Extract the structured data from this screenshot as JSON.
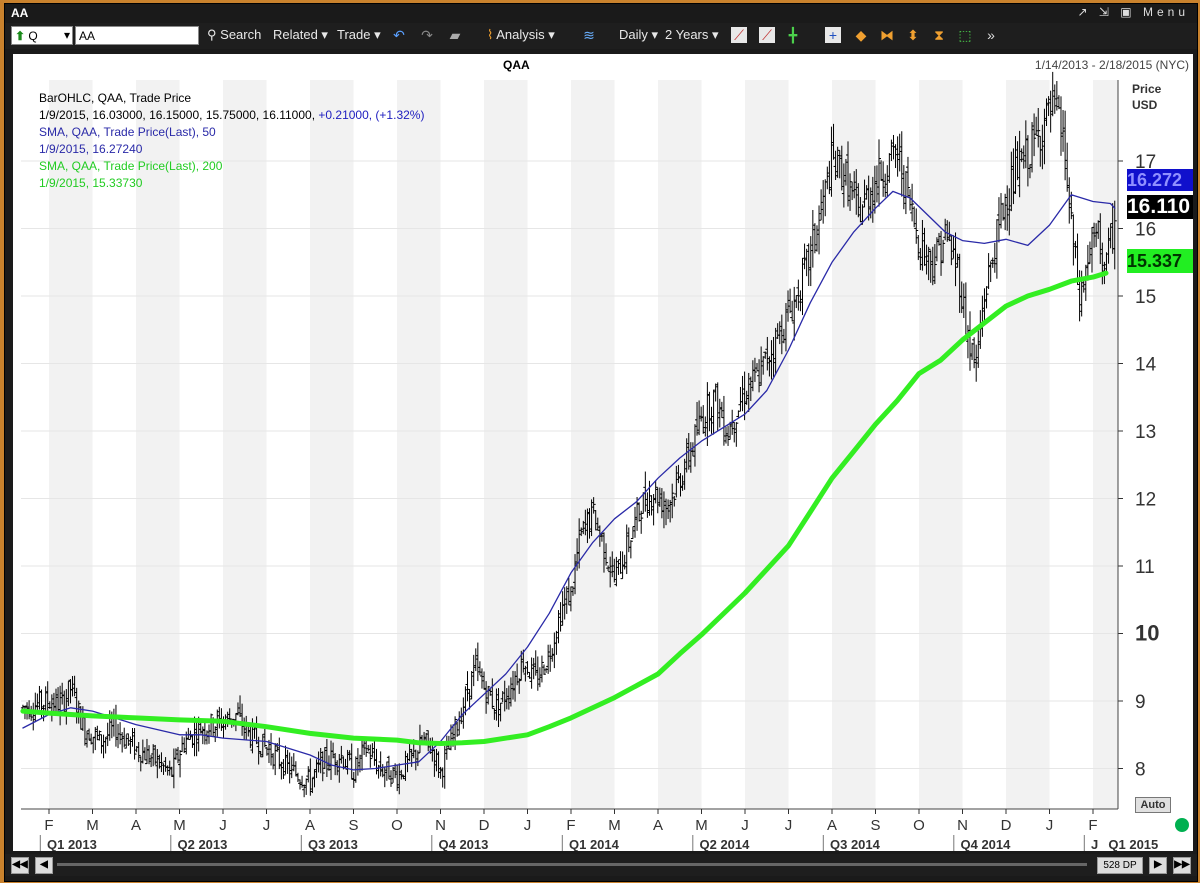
{
  "window": {
    "title": "AA",
    "controls": "↗ ⇲ ▣ Menu"
  },
  "toolbar": {
    "symbol_type": "Q",
    "symbol_value": "AA",
    "search": "Search",
    "related": "Related",
    "trade": "Trade",
    "analysis": "Analysis",
    "interval": "Daily",
    "range": "2 Years"
  },
  "chart_header": {
    "title": "QAA",
    "date_range": "1/14/2013 - 2/18/2015 (NYC)"
  },
  "legend": {
    "line1": "BarOHLC, QAA, Trade Price",
    "line2_prefix": "1/9/2015, 16.03000, 16.15000, 15.75000, 16.11000,",
    "line2_change": "+0.21000, (+1.32%)",
    "line3": "SMA, QAA, Trade Price(Last),  50",
    "line4": "1/9/2015, 16.27240",
    "line5": "SMA, QAA, Trade Price(Last),  200",
    "line6": "1/9/2015, 15.33730"
  },
  "axis": {
    "price_label": "Price",
    "currency": "USD",
    "auto": "Auto"
  },
  "badges": {
    "sma50": "16.272",
    "last": "16.110",
    "sma200": "15.337"
  },
  "statusbar": {
    "nav_left": "◀◀",
    "nav_prev": "◀",
    "dp": "528 DP",
    "nav_next": "▶",
    "nav_right": "▶▶"
  },
  "colors": {
    "sma50": "#2a2aa8",
    "sma200": "#33ee22",
    "bars": "#000000",
    "band": "#f2f2f2"
  },
  "chart_data": {
    "type": "line",
    "ylim": [
      7.4,
      18.2
    ],
    "yticks": [
      8,
      9,
      10,
      11,
      12,
      13,
      14,
      15,
      16,
      17
    ],
    "xlim": [
      0,
      25.3
    ],
    "month_ticks": [
      "F",
      "M",
      "A",
      "M",
      "J",
      "J",
      "A",
      "S",
      "O",
      "N",
      "D",
      "J",
      "F",
      "M",
      "A",
      "M",
      "J",
      "J",
      "A",
      "S",
      "O",
      "N",
      "D",
      "J",
      "F"
    ],
    "quarter_labels": [
      {
        "label": "Q1 2013",
        "x": 0
      },
      {
        "label": "Q2 2013",
        "x": 3
      },
      {
        "label": "Q3 2013",
        "x": 6
      },
      {
        "label": "Q4 2013",
        "x": 9
      },
      {
        "label": "Q1 2014",
        "x": 12
      },
      {
        "label": "Q2 2014",
        "x": 15
      },
      {
        "label": "Q3 2014",
        "x": 18
      },
      {
        "label": "Q4 2014",
        "x": 21
      },
      {
        "label": "J",
        "x": 24
      },
      {
        "label": "Q1 2015",
        "x": 24.4
      }
    ],
    "series": [
      {
        "name": "SMA, QAA, Trade Price(Last), 50",
        "points": [
          [
            -0.6,
            8.6
          ],
          [
            0,
            8.8
          ],
          [
            0.5,
            8.9
          ],
          [
            1,
            8.85
          ],
          [
            2,
            8.65
          ],
          [
            3,
            8.5
          ],
          [
            3.5,
            8.5
          ],
          [
            4,
            8.45
          ],
          [
            5,
            8.4
          ],
          [
            5.5,
            8.3
          ],
          [
            6,
            8.2
          ],
          [
            6.5,
            8.05
          ],
          [
            7,
            7.98
          ],
          [
            7.5,
            8.0
          ],
          [
            8,
            8.05
          ],
          [
            8.5,
            8.1
          ],
          [
            9,
            8.4
          ],
          [
            9.5,
            8.8
          ],
          [
            10,
            9.1
          ],
          [
            10.5,
            9.4
          ],
          [
            11,
            9.8
          ],
          [
            11.5,
            10.3
          ],
          [
            12,
            10.9
          ],
          [
            12.5,
            11.35
          ],
          [
            13,
            11.7
          ],
          [
            13.5,
            11.95
          ],
          [
            14,
            12.3
          ],
          [
            14.5,
            12.6
          ],
          [
            15,
            12.85
          ],
          [
            15.5,
            13.05
          ],
          [
            16,
            13.25
          ],
          [
            16.5,
            13.6
          ],
          [
            17,
            14.2
          ],
          [
            17.5,
            14.9
          ],
          [
            18,
            15.5
          ],
          [
            18.5,
            15.95
          ],
          [
            19,
            16.3
          ],
          [
            19.4,
            16.55
          ],
          [
            19.8,
            16.45
          ],
          [
            20.2,
            16.2
          ],
          [
            20.6,
            15.95
          ],
          [
            21,
            15.82
          ],
          [
            21.5,
            15.78
          ],
          [
            22,
            15.84
          ],
          [
            22.5,
            15.75
          ],
          [
            23,
            16.05
          ],
          [
            23.5,
            16.5
          ],
          [
            24,
            16.4
          ],
          [
            24.4,
            16.37
          ],
          [
            24.5,
            16.3
          ]
        ]
      },
      {
        "name": "SMA, QAA, Trade Price(Last), 200",
        "points": [
          [
            -0.6,
            8.85
          ],
          [
            0,
            8.82
          ],
          [
            1,
            8.78
          ],
          [
            2,
            8.75
          ],
          [
            3,
            8.72
          ],
          [
            4,
            8.7
          ],
          [
            5,
            8.62
          ],
          [
            6,
            8.52
          ],
          [
            7,
            8.45
          ],
          [
            8,
            8.42
          ],
          [
            8.5,
            8.38
          ],
          [
            9,
            8.37
          ],
          [
            9.5,
            8.38
          ],
          [
            10,
            8.4
          ],
          [
            11,
            8.5
          ],
          [
            11.5,
            8.62
          ],
          [
            12,
            8.75
          ],
          [
            13,
            9.05
          ],
          [
            14,
            9.4
          ],
          [
            14.5,
            9.7
          ],
          [
            15,
            9.98
          ],
          [
            16,
            10.6
          ],
          [
            17,
            11.3
          ],
          [
            17.5,
            11.8
          ],
          [
            18,
            12.3
          ],
          [
            18.5,
            12.7
          ],
          [
            19,
            13.1
          ],
          [
            19.5,
            13.45
          ],
          [
            20,
            13.85
          ],
          [
            20.5,
            14.05
          ],
          [
            21,
            14.35
          ],
          [
            21.5,
            14.6
          ],
          [
            22,
            14.85
          ],
          [
            22.5,
            15.0
          ],
          [
            23,
            15.1
          ],
          [
            23.5,
            15.22
          ],
          [
            24,
            15.28
          ],
          [
            24.3,
            15.34
          ]
        ]
      }
    ],
    "ohlc_anchors": [
      [
        -0.6,
        8.9
      ],
      [
        0,
        9.0
      ],
      [
        0.3,
        8.95
      ],
      [
        0.5,
        9.2
      ],
      [
        0.8,
        8.6
      ],
      [
        1.2,
        8.4
      ],
      [
        1.5,
        8.6
      ],
      [
        2,
        8.3
      ],
      [
        2.5,
        8.1
      ],
      [
        2.8,
        7.9
      ],
      [
        3.1,
        8.4
      ],
      [
        3.5,
        8.6
      ],
      [
        4,
        8.7
      ],
      [
        4.3,
        8.8
      ],
      [
        4.6,
        8.5
      ],
      [
        5,
        8.3
      ],
      [
        5.5,
        8.0
      ],
      [
        6,
        7.8
      ],
      [
        6.3,
        8.1
      ],
      [
        6.7,
        8.2
      ],
      [
        7,
        7.95
      ],
      [
        7.3,
        8.3
      ],
      [
        7.6,
        8.0
      ],
      [
        8,
        7.9
      ],
      [
        8.3,
        8.1
      ],
      [
        8.6,
        8.4
      ],
      [
        8.8,
        8.3
      ],
      [
        9,
        7.95
      ],
      [
        9.2,
        8.3
      ],
      [
        9.5,
        8.9
      ],
      [
        9.8,
        9.5
      ],
      [
        10,
        9.2
      ],
      [
        10.3,
        8.9
      ],
      [
        10.6,
        9.2
      ],
      [
        10.9,
        9.6
      ],
      [
        11.2,
        9.3
      ],
      [
        11.5,
        9.7
      ],
      [
        11.8,
        10.4
      ],
      [
        12,
        10.6
      ],
      [
        12.2,
        11.4
      ],
      [
        12.5,
        11.8
      ],
      [
        12.8,
        11.2
      ],
      [
        13,
        10.8
      ],
      [
        13.3,
        11.3
      ],
      [
        13.6,
        11.9
      ],
      [
        13.9,
        12.1
      ],
      [
        14.2,
        11.9
      ],
      [
        14.5,
        12.3
      ],
      [
        14.8,
        12.8
      ],
      [
        15,
        13.2
      ],
      [
        15.3,
        13.5
      ],
      [
        15.6,
        13.0
      ],
      [
        16,
        13.6
      ],
      [
        16.3,
        13.8
      ],
      [
        16.6,
        14.2
      ],
      [
        16.9,
        14.6
      ],
      [
        17.2,
        15.0
      ],
      [
        17.5,
        15.6
      ],
      [
        17.8,
        16.4
      ],
      [
        18,
        17.0
      ],
      [
        18.3,
        16.8
      ],
      [
        18.6,
        16.2
      ],
      [
        18.9,
        16.6
      ],
      [
        19.2,
        16.9
      ],
      [
        19.5,
        17.1
      ],
      [
        19.7,
        16.6
      ],
      [
        20,
        15.8
      ],
      [
        20.3,
        15.5
      ],
      [
        20.6,
        15.9
      ],
      [
        20.9,
        15.4
      ],
      [
        21.1,
        14.5
      ],
      [
        21.3,
        13.9
      ],
      [
        21.5,
        15.0
      ],
      [
        21.8,
        15.9
      ],
      [
        22,
        16.5
      ],
      [
        22.3,
        16.9
      ],
      [
        22.6,
        17.2
      ],
      [
        22.9,
        17.6
      ],
      [
        23.1,
        17.8
      ],
      [
        23.3,
        17.4
      ],
      [
        23.5,
        16.0
      ],
      [
        23.7,
        14.9
      ],
      [
        23.9,
        15.6
      ],
      [
        24.1,
        15.9
      ],
      [
        24.3,
        15.4
      ],
      [
        24.5,
        16.1
      ]
    ]
  }
}
